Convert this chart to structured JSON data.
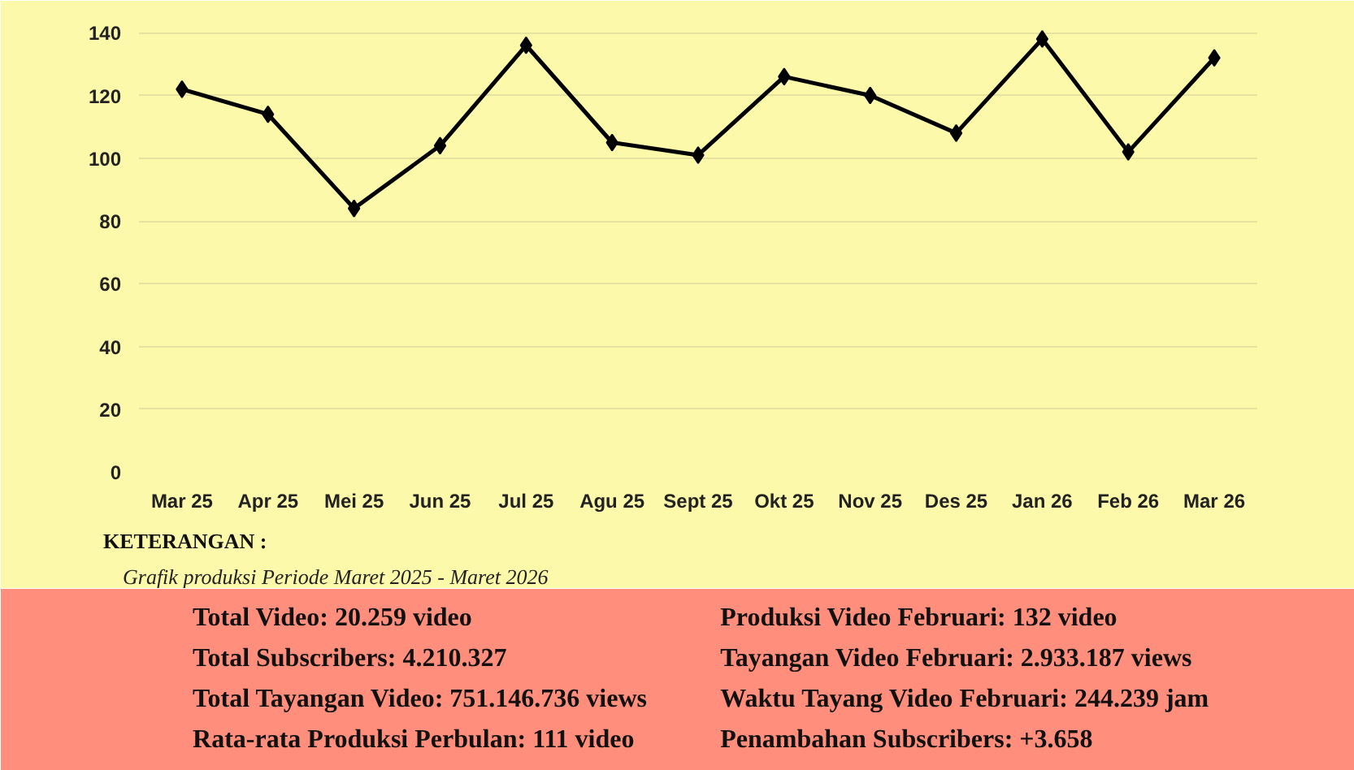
{
  "chart_data": [
    {
      "type": "line",
      "categories": [
        "Mar 25",
        "Apr 25",
        "Mei 25",
        "Jun 25",
        "Jul 25",
        "Agu 25",
        "Sept 25",
        "Okt 25",
        "Nov 25",
        "Des 25",
        "Jan 26",
        "Feb 26",
        "Mar 26"
      ],
      "series": [
        {
          "color": "#000000",
          "values": [
            122,
            114,
            84,
            104,
            136,
            105,
            101,
            126,
            120,
            108,
            138,
            102,
            132
          ]
        }
      ],
      "ylim": [
        0,
        145
      ],
      "yticks": [
        0,
        20,
        40,
        60,
        80,
        100,
        120,
        140
      ],
      "grid": "y",
      "marker": "diamond",
      "line_style": "solid",
      "annotations": [
        "KETERANGAN :",
        "Grafik produksi Periode Maret 2025 - Maret 2026"
      ]
    },
    {
      "type": "other",
      "annotations": [
        "Total Video: 20.259 video",
        "Total Subscribers: 4.210.327",
        "Total Tayangan Video: 751.146.736 views",
        "Rata-rata Produksi Perbulan: 111 video",
        "Produksi Video Februari: 132 video",
        "Tayangan Video Februari: 2.933.187 views",
        "Waktu Tayang Video Februari: 244.239 jam",
        "Penambahan Subscribers: +3.658"
      ]
    }
  ]
}
